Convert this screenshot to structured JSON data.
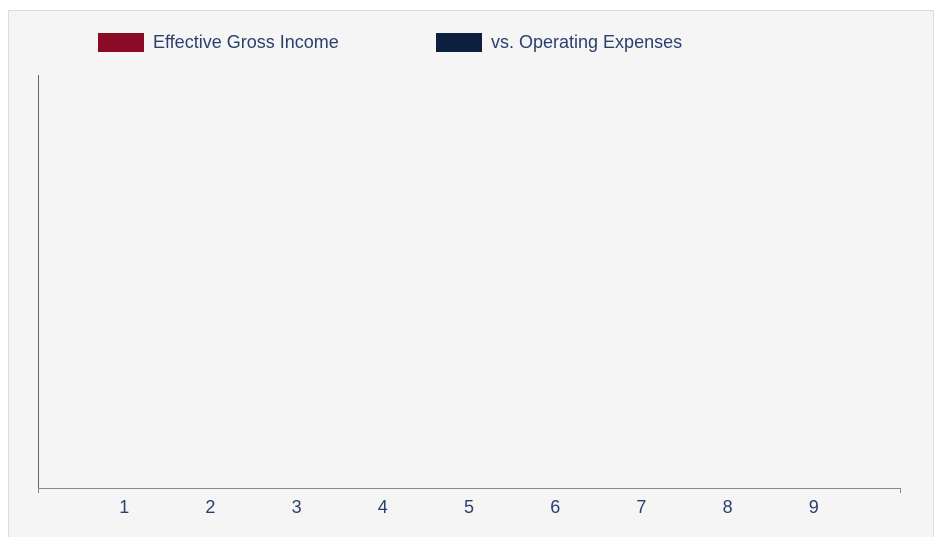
{
  "chart_data": {
    "type": "bar",
    "categories": [
      "1",
      "2",
      "3",
      "4",
      "5",
      "6",
      "7",
      "8",
      "9"
    ],
    "series": [
      {
        "name": "Effective Gross Income",
        "color": "#8b0a26",
        "values": [
          null,
          null,
          null,
          null,
          null,
          null,
          null,
          null,
          null
        ]
      },
      {
        "name": "vs. Operating Expenses",
        "color": "#0c1f3f",
        "values": [
          null,
          null,
          null,
          null,
          null,
          null,
          null,
          null,
          null
        ]
      }
    ],
    "legend": "top"
  }
}
